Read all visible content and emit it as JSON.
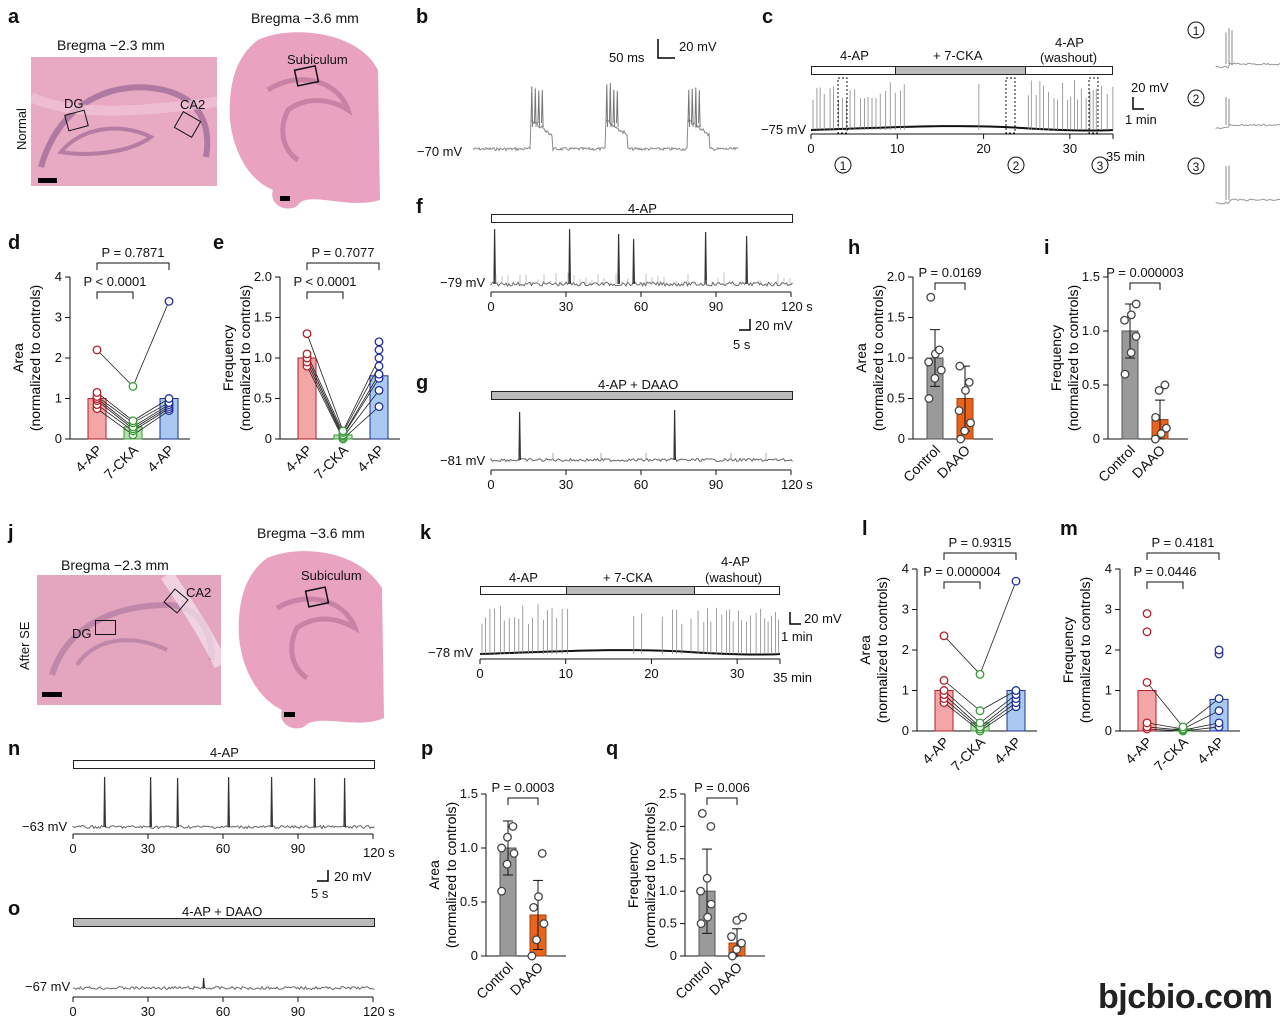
{
  "panels": {
    "a": "a",
    "b": "b",
    "c": "c",
    "d": "d",
    "e": "e",
    "f": "f",
    "g": "g",
    "h": "h",
    "i": "i",
    "j": "j",
    "k": "k",
    "l": "l",
    "m": "m",
    "n": "n",
    "o": "o",
    "p": "p",
    "q": "q"
  },
  "a": {
    "bregma1": "Bregma −2.3 mm",
    "bregma2": "Bregma −3.6 mm",
    "side": "Normal",
    "dg": "DG",
    "ca2": "CA2",
    "sub": "Subiculum"
  },
  "b": {
    "scale_t": "50 ms",
    "scale_v": "20 mV",
    "vm": "−70 mV"
  },
  "c": {
    "bar1": "4-AP",
    "bar2": "+ 7-CKA",
    "bar3a": "4-AP",
    "bar3b": "(washout)",
    "scale_v": "20 mV",
    "scale_t": "1 min",
    "vm": "−75 mV",
    "ticks": [
      "0",
      "10",
      "20",
      "30"
    ],
    "tick_last": "35 min",
    "marks": [
      "1",
      "2",
      "3"
    ]
  },
  "d": {
    "ylabel1": "Area",
    "ylabel2": "(normalized to controls)",
    "p1": "P < 0.0001",
    "p2": "P = 0.7871",
    "yticks": [
      "0",
      "1",
      "2",
      "3",
      "4"
    ],
    "cats": [
      "4-AP",
      "7-CKA",
      "4-AP"
    ]
  },
  "e": {
    "ylabel1": "Frequency",
    "ylabel2": "(normalized to controls)",
    "p1": "P < 0.0001",
    "p2": "P = 0.7077",
    "yticks": [
      "0",
      "0.5",
      "1.0",
      "1.5",
      "2.0"
    ],
    "cats": [
      "4-AP",
      "7-CKA",
      "4-AP"
    ]
  },
  "f": {
    "bar": "4-AP",
    "vm": "−79 mV",
    "ticks": [
      "0",
      "30",
      "60",
      "90"
    ],
    "tick_last": "120 s",
    "scale_v": "20 mV",
    "scale_t": "5 s"
  },
  "g": {
    "bar": "4-AP + DAAO",
    "vm": "−81 mV",
    "ticks": [
      "0",
      "30",
      "60",
      "90"
    ],
    "tick_last": "120 s"
  },
  "h": {
    "ylabel1": "Area",
    "ylabel2": "(normalized to controls)",
    "p": "P = 0.0169",
    "yticks": [
      "0",
      "0.5",
      "1.0",
      "1.5",
      "2.0"
    ],
    "cats": [
      "Control",
      "DAAO"
    ]
  },
  "i": {
    "ylabel1": "Frequency",
    "ylabel2": "(normalized to controls)",
    "p": "P = 0.000003",
    "yticks": [
      "0",
      "0.5",
      "1.0",
      "1.5"
    ],
    "cats": [
      "Control",
      "DAAO"
    ]
  },
  "j": {
    "bregma1": "Bregma −2.3 mm",
    "bregma2": "Bregma −3.6 mm",
    "side": "After SE",
    "dg": "DG",
    "ca2": "CA2",
    "sub": "Subiculum"
  },
  "k": {
    "bar1": "4-AP",
    "bar2": "+ 7-CKA",
    "bar3a": "4-AP",
    "bar3b": "(washout)",
    "scale_v": "20 mV",
    "scale_t": "1 min",
    "vm": "−78 mV",
    "ticks": [
      "0",
      "10",
      "20",
      "30"
    ],
    "tick_last": "35 min"
  },
  "l": {
    "ylabel1": "Area",
    "ylabel2": "(normalized to controls)",
    "p1": "P = 0.000004",
    "p2": "P = 0.9315",
    "yticks": [
      "0",
      "1",
      "2",
      "3",
      "4"
    ],
    "cats": [
      "4-AP",
      "7-CKA",
      "4-AP"
    ]
  },
  "m": {
    "ylabel1": "Frequency",
    "ylabel2": "(normalized to controls)",
    "p1": "P = 0.0446",
    "p2": "P = 0.4181",
    "yticks": [
      "0",
      "1",
      "2",
      "3",
      "4"
    ],
    "cats": [
      "4-AP",
      "7-CKA",
      "4-AP"
    ]
  },
  "n": {
    "bar": "4-AP",
    "vm": "−63 mV",
    "ticks": [
      "0",
      "30",
      "60",
      "90"
    ],
    "tick_last": "120 s",
    "scale_v": "20 mV",
    "scale_t": "5 s"
  },
  "o": {
    "bar": "4-AP + DAAO",
    "vm": "−67 mV",
    "ticks": [
      "0",
      "30",
      "60",
      "90"
    ],
    "tick_last": "120 s"
  },
  "p": {
    "ylabel1": "Area",
    "ylabel2": "(normalized to controls)",
    "p": "P = 0.0003",
    "yticks": [
      "0",
      "0.5",
      "1.0",
      "1.5"
    ],
    "cats": [
      "Control",
      "DAAO"
    ]
  },
  "q": {
    "ylabel1": "Frequency",
    "ylabel2": "(normalized to controls)",
    "p": "P = 0.006",
    "yticks": [
      "0",
      "0.5",
      "1.0",
      "1.5",
      "2.0",
      "2.5"
    ],
    "cats": [
      "Control",
      "DAAO"
    ]
  },
  "watermark": "bjcbio.com",
  "colors": {
    "ctrl_fill": "#f4a6a6",
    "ctrl_edge": "#b3202a",
    "cka_fill": "#b8e0b0",
    "cka_edge": "#3a9a3a",
    "wash_fill": "#a9c9f0",
    "wash_edge": "#20309a",
    "gray_bar": "#9a9a9a",
    "daao_bar": "#e8631c",
    "tissue": "#e9a2c0"
  },
  "chart_data": [
    {
      "panel": "d",
      "type": "bar",
      "categories": [
        "4-AP",
        "7-CKA",
        "4-AP"
      ],
      "values": [
        1.0,
        0.3,
        1.0
      ],
      "ylim": [
        0,
        4
      ],
      "points": [
        [
          0.75,
          0.85,
          0.95,
          1.0,
          1.05,
          1.15,
          2.2
        ],
        [
          0.1,
          0.2,
          0.25,
          0.3,
          0.4,
          0.45,
          1.3
        ],
        [
          0.7,
          0.75,
          0.8,
          0.85,
          0.9,
          1.0,
          3.4
        ]
      ]
    },
    {
      "panel": "e",
      "type": "bar",
      "categories": [
        "4-AP",
        "7-CKA",
        "4-AP"
      ],
      "values": [
        1.0,
        0.05,
        0.78
      ],
      "ylim": [
        0,
        2
      ],
      "points": [
        [
          0.9,
          0.95,
          1.0,
          1.0,
          1.05,
          1.3
        ],
        [
          0.0,
          0.02,
          0.04,
          0.05,
          0.08,
          0.1
        ],
        [
          0.4,
          0.6,
          0.75,
          0.8,
          0.9,
          1.0,
          1.1,
          1.2
        ]
      ]
    },
    {
      "panel": "h",
      "type": "bar",
      "categories": [
        "Control",
        "DAAO"
      ],
      "values": [
        1.0,
        0.5
      ],
      "errors": [
        0.35,
        0.4
      ],
      "ylim": [
        0,
        2
      ],
      "points": [
        [
          0.5,
          0.75,
          0.85,
          0.95,
          1.05,
          1.1,
          1.75
        ],
        [
          0.0,
          0.1,
          0.2,
          0.35,
          0.6,
          0.7,
          0.9
        ]
      ]
    },
    {
      "panel": "i",
      "type": "bar",
      "categories": [
        "Control",
        "DAAO"
      ],
      "values": [
        1.0,
        0.18
      ],
      "errors": [
        0.25,
        0.18
      ],
      "ylim": [
        0,
        1.5
      ],
      "points": [
        [
          0.6,
          0.8,
          0.95,
          1.1,
          1.15,
          1.25
        ],
        [
          0.0,
          0.05,
          0.1,
          0.2,
          0.45,
          0.5
        ]
      ]
    },
    {
      "panel": "l",
      "type": "bar",
      "categories": [
        "4-AP",
        "7-CKA",
        "4-AP"
      ],
      "values": [
        1.0,
        0.2,
        1.0
      ],
      "ylim": [
        0,
        4
      ],
      "points": [
        [
          0.7,
          0.8,
          0.9,
          1.0,
          1.25,
          2.35
        ],
        [
          0.0,
          0.05,
          0.1,
          0.2,
          0.5,
          1.4
        ],
        [
          0.6,
          0.7,
          0.8,
          0.9,
          1.0,
          3.7
        ]
      ]
    },
    {
      "panel": "m",
      "type": "bar",
      "categories": [
        "4-AP",
        "7-CKA",
        "4-AP"
      ],
      "values": [
        1.0,
        0.05,
        0.78
      ],
      "ylim": [
        0,
        4
      ],
      "points": [
        [
          0.05,
          0.1,
          0.2,
          1.2,
          2.45,
          2.9
        ],
        [
          0.0,
          0.02,
          0.05,
          0.1
        ],
        [
          0.1,
          0.2,
          0.5,
          0.8,
          1.9,
          2.0
        ]
      ]
    },
    {
      "panel": "p",
      "type": "bar",
      "categories": [
        "Control",
        "DAAO"
      ],
      "values": [
        1.0,
        0.38
      ],
      "errors": [
        0.25,
        0.32
      ],
      "ylim": [
        0,
        1.5
      ],
      "points": [
        [
          0.6,
          0.85,
          0.95,
          1.0,
          1.1,
          1.2
        ],
        [
          0.0,
          0.15,
          0.3,
          0.45,
          0.55,
          0.95
        ]
      ]
    },
    {
      "panel": "q",
      "type": "bar",
      "categories": [
        "Control",
        "DAAO"
      ],
      "values": [
        1.0,
        0.2
      ],
      "errors": [
        0.65,
        0.22
      ],
      "ylim": [
        0,
        2.5
      ],
      "points": [
        [
          0.5,
          0.6,
          0.8,
          1.0,
          1.2,
          2.0,
          2.2
        ],
        [
          0.0,
          0.1,
          0.2,
          0.3,
          0.55,
          0.6
        ]
      ]
    }
  ]
}
